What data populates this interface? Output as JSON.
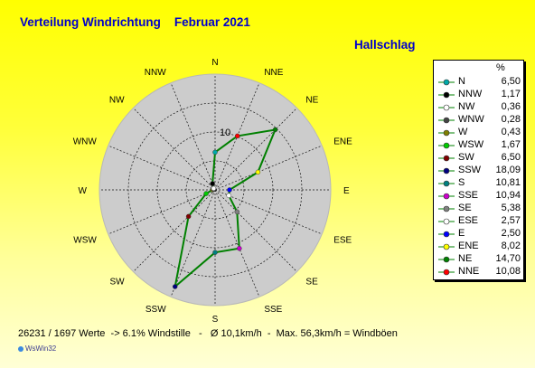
{
  "header": {
    "title": "Verteilung Windrichtung    Februar 2021",
    "location": "Hallschlag"
  },
  "legend": {
    "unit": "%"
  },
  "footer": {
    "summary": "26231 / 1697 Werte  -> 6.1% Windstille   -   Ø 10,1km/h  -  Max. 56,3km/h = Windböen",
    "brand": "WsWin32"
  },
  "colors": {
    "background_top": "#ffff00",
    "background_bottom": "#ffffd6",
    "plot_disc": "#cccccc",
    "series_line": "#008000",
    "title": "#0000cc"
  },
  "chart_data": {
    "type": "radar",
    "title": "Verteilung Windrichtung    Februar 2021",
    "subtitle": "Hallschlag",
    "unit": "%",
    "rlim": [
      0,
      20
    ],
    "grid_rings": [
      5,
      10,
      15
    ],
    "ring_label": "10",
    "grid": true,
    "legend_position": "right",
    "directions": [
      "N",
      "NNE",
      "NE",
      "ENE",
      "E",
      "ESE",
      "SE",
      "SSE",
      "S",
      "SSW",
      "SW",
      "WSW",
      "W",
      "WNW",
      "NW",
      "NNW"
    ],
    "series": [
      {
        "values": [
          6.5,
          10.08,
          14.7,
          8.02,
          2.5,
          2.57,
          5.38,
          10.94,
          10.81,
          18.09,
          6.5,
          1.67,
          0.43,
          0.28,
          0.36,
          1.17
        ]
      }
    ],
    "legend_entries": [
      {
        "dir": "N",
        "value": "6,50",
        "color": "#00aaaa"
      },
      {
        "dir": "NNW",
        "value": "1,17",
        "color": "#000000"
      },
      {
        "dir": "NW",
        "value": "0,36",
        "color": "#ffffff"
      },
      {
        "dir": "WNW",
        "value": "0,28",
        "color": "#444444"
      },
      {
        "dir": "W",
        "value": "0,43",
        "color": "#808000"
      },
      {
        "dir": "WSW",
        "value": "1,67",
        "color": "#00cc00"
      },
      {
        "dir": "SW",
        "value": "6,50",
        "color": "#800000"
      },
      {
        "dir": "SSW",
        "value": "18,09",
        "color": "#000080"
      },
      {
        "dir": "S",
        "value": "10,81",
        "color": "#008080"
      },
      {
        "dir": "SSE",
        "value": "10,94",
        "color": "#cc00cc"
      },
      {
        "dir": "SE",
        "value": "5,38",
        "color": "#808080"
      },
      {
        "dir": "ESE",
        "value": "2,57",
        "color": "#ffffff"
      },
      {
        "dir": "E",
        "value": "2,50",
        "color": "#0000ff"
      },
      {
        "dir": "ENE",
        "value": "8,02",
        "color": "#ffff00"
      },
      {
        "dir": "NE",
        "value": "14,70",
        "color": "#008000"
      },
      {
        "dir": "NNE",
        "value": "10,08",
        "color": "#ff0000"
      }
    ]
  }
}
